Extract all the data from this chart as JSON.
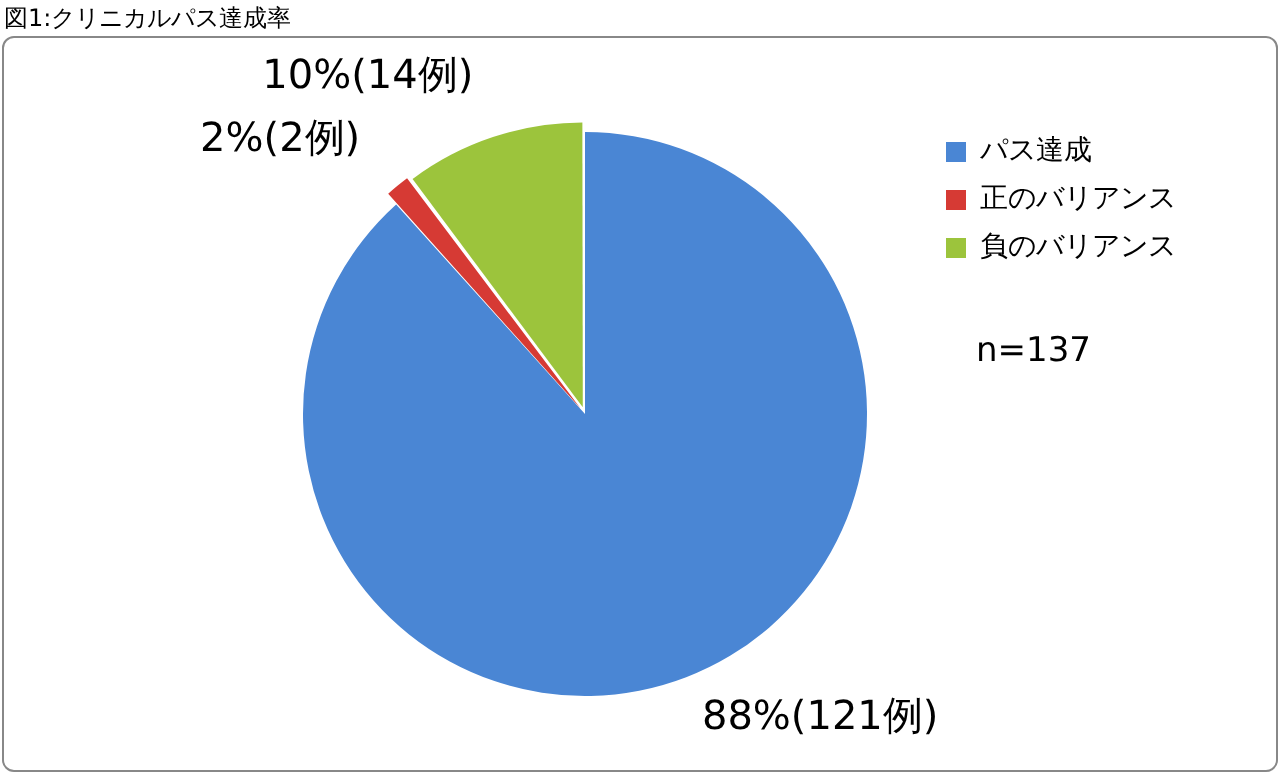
{
  "chart_data": {
    "type": "pie",
    "title": "図1:クリニカルパス達成率",
    "categories": [
      "パス達成",
      "正のバリアンス",
      "負のバリアンス"
    ],
    "values": [
      121,
      2,
      14
    ],
    "colors": [
      "#4a86d4",
      "#d63a34",
      "#9cc43c"
    ],
    "value_labels": [
      "88%(121例)",
      "2%(2例)",
      "10%(14例)"
    ],
    "legend": "top right",
    "annotations": [
      "n=137"
    ]
  }
}
